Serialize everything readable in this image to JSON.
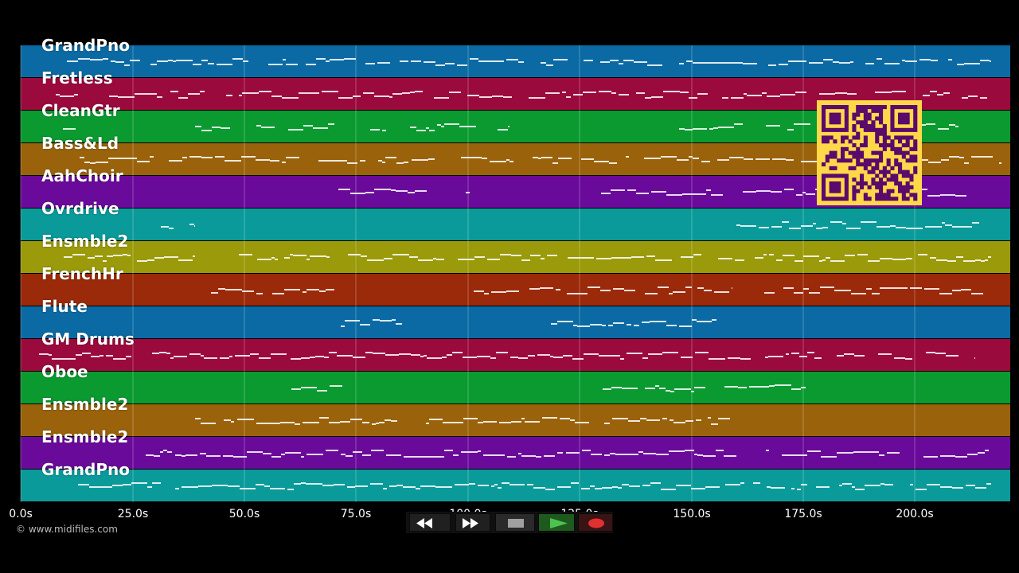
{
  "tracks": [
    {
      "name": "GrandPno",
      "color": "#0b6aa4"
    },
    {
      "name": "Fretless",
      "color": "#9a0a3c"
    },
    {
      "name": "CleanGtr",
      "color": "#0a9a30"
    },
    {
      "name": "Bass&Ld",
      "color": "#9a620a"
    },
    {
      "name": "AahChoir",
      "color": "#6a0a9a"
    },
    {
      "name": "Ovrdrive",
      "color": "#0a9a9a"
    },
    {
      "name": "Ensmble2",
      "color": "#9a9a0a"
    },
    {
      "name": "FrenchHr",
      "color": "#9a2a0a"
    },
    {
      "name": "Flute",
      "color": "#0b6aa4"
    },
    {
      "name": "GM Drums",
      "color": "#9a0a3c"
    },
    {
      "name": "Oboe",
      "color": "#0a9a30"
    },
    {
      "name": "Ensmble2",
      "color": "#9a620a"
    },
    {
      "name": "Ensmble2",
      "color": "#6a0a9a"
    },
    {
      "name": "GrandPno",
      "color": "#0a9a9a"
    }
  ],
  "timeline": {
    "unit": "s",
    "ticks": [
      "0.0s",
      "25.0s",
      "50.0s",
      "75.0s",
      "100.0s",
      "125.0s",
      "150.0s",
      "175.0s",
      "200.0s"
    ]
  },
  "copyright": "© www.midifiles.com",
  "transport": {
    "buttons": [
      "rewind-icon",
      "fast-forward-icon",
      "stop-icon",
      "play-icon",
      "record-icon"
    ]
  },
  "qr_code": {
    "color": "#ffd84a",
    "fg": "#5a0a6a"
  }
}
